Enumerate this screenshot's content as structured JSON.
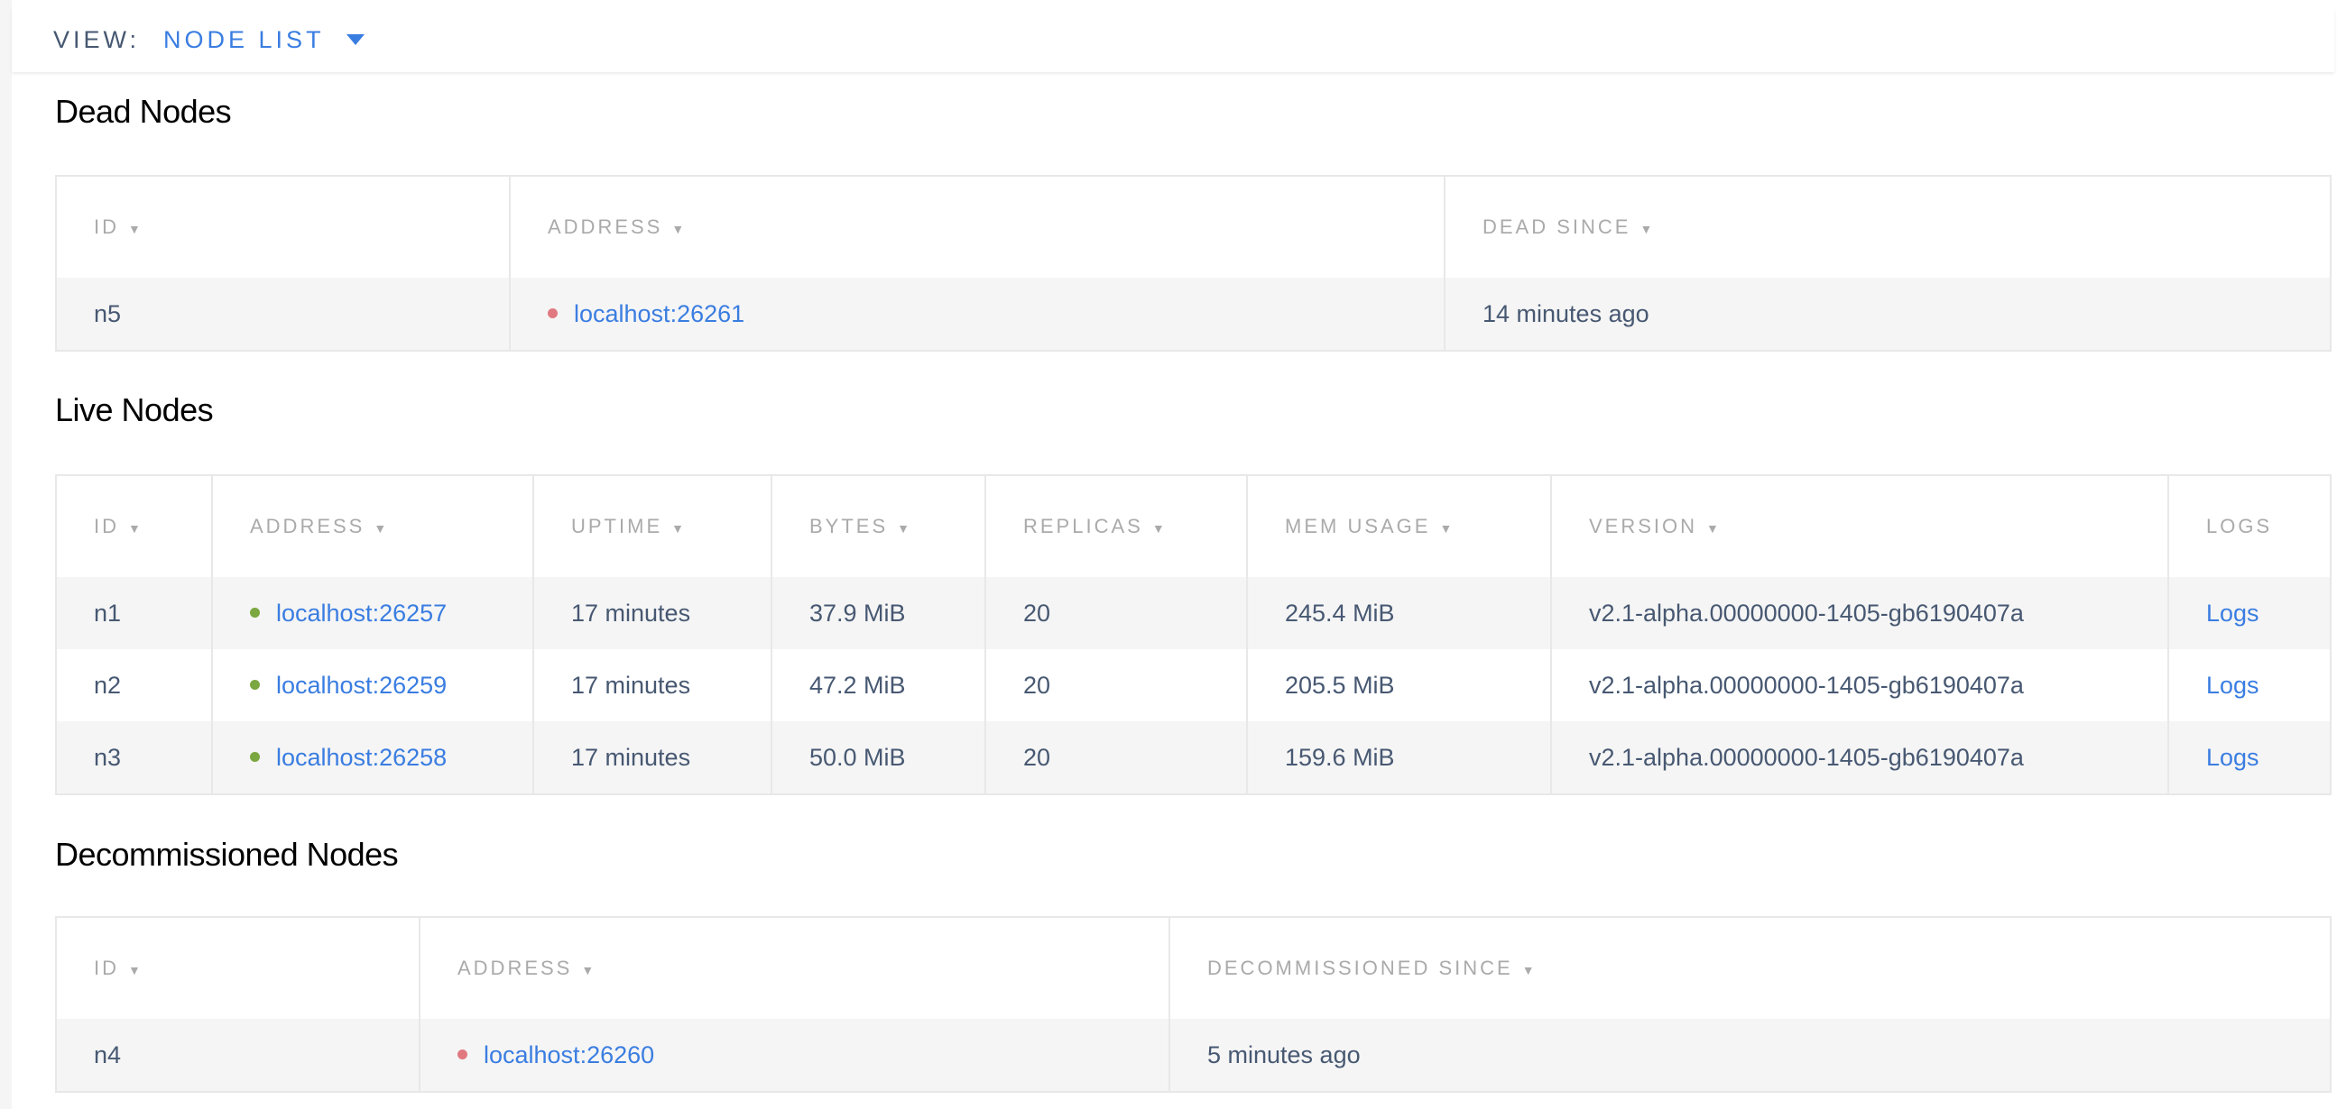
{
  "view": {
    "label": "VIEW:",
    "value": "NODE LIST"
  },
  "colors": {
    "accent": "#3a7de1",
    "live": "#7aa73f",
    "dead": "#e07a80"
  },
  "dead": {
    "title": "Dead Nodes",
    "columns": [
      {
        "label": "ID",
        "sortable": true
      },
      {
        "label": "ADDRESS",
        "sortable": true
      },
      {
        "label": "DEAD SINCE",
        "sortable": true
      }
    ],
    "rows": [
      {
        "id": "n5",
        "address": "localhost:26261",
        "status": "dead",
        "since": "14 minutes ago"
      }
    ]
  },
  "live": {
    "title": "Live Nodes",
    "columns": [
      {
        "label": "ID",
        "sortable": true
      },
      {
        "label": "ADDRESS",
        "sortable": true
      },
      {
        "label": "UPTIME",
        "sortable": true
      },
      {
        "label": "BYTES",
        "sortable": true
      },
      {
        "label": "REPLICAS",
        "sortable": true
      },
      {
        "label": "MEM USAGE",
        "sortable": true
      },
      {
        "label": "VERSION",
        "sortable": true
      },
      {
        "label": "LOGS",
        "sortable": false
      }
    ],
    "rows": [
      {
        "id": "n1",
        "address": "localhost:26257",
        "status": "live",
        "uptime": "17 minutes",
        "bytes": "37.9 MiB",
        "replicas": "20",
        "mem": "245.4 MiB",
        "version": "v2.1-alpha.00000000-1405-gb6190407a",
        "logs": "Logs"
      },
      {
        "id": "n2",
        "address": "localhost:26259",
        "status": "live",
        "uptime": "17 minutes",
        "bytes": "47.2 MiB",
        "replicas": "20",
        "mem": "205.5 MiB",
        "version": "v2.1-alpha.00000000-1405-gb6190407a",
        "logs": "Logs"
      },
      {
        "id": "n3",
        "address": "localhost:26258",
        "status": "live",
        "uptime": "17 minutes",
        "bytes": "50.0 MiB",
        "replicas": "20",
        "mem": "159.6 MiB",
        "version": "v2.1-alpha.00000000-1405-gb6190407a",
        "logs": "Logs"
      }
    ]
  },
  "decommissioned": {
    "title": "Decommissioned Nodes",
    "columns": [
      {
        "label": "ID",
        "sortable": true
      },
      {
        "label": "ADDRESS",
        "sortable": true
      },
      {
        "label": "DECOMMISSIONED SINCE",
        "sortable": true
      }
    ],
    "rows": [
      {
        "id": "n4",
        "address": "localhost:26260",
        "status": "dead",
        "since": "5 minutes ago"
      }
    ]
  }
}
